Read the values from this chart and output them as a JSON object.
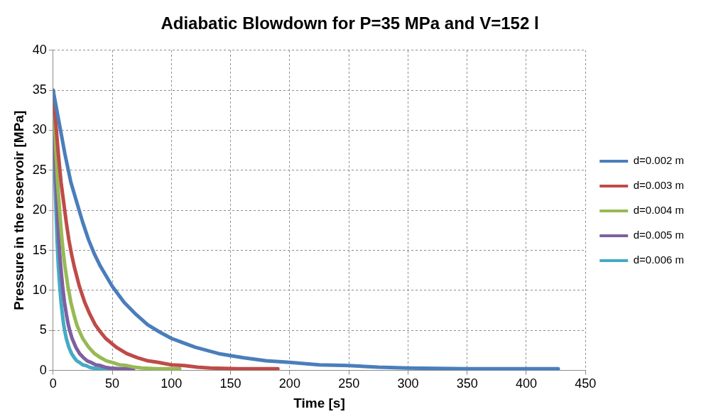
{
  "chart_data": {
    "type": "line",
    "title": "Adiabatic Blowdown for P=35 MPa and V=152 l",
    "xlabel": "Time [s]",
    "ylabel": "Pressure in the reservoir [MPa]",
    "xlim": [
      0,
      450
    ],
    "xticks": [
      0,
      50,
      100,
      150,
      200,
      250,
      300,
      350,
      400,
      450
    ],
    "ylim": [
      0,
      40
    ],
    "yticks": [
      0,
      5,
      10,
      15,
      20,
      25,
      30,
      35,
      40
    ],
    "grid": true,
    "legend": "right",
    "line_style": "solid",
    "series": [
      {
        "name": "d=0.002 m",
        "color": "#4a7ebb",
        "x": [
          0,
          5,
          10,
          15,
          20,
          25,
          30,
          35,
          40,
          50,
          60,
          70,
          80,
          90,
          100,
          120,
          140,
          160,
          180,
          200,
          225,
          250,
          275,
          300,
          350,
          400,
          427
        ],
        "values": [
          35,
          31,
          27,
          23.5,
          21,
          18.5,
          16.3,
          14.5,
          13,
          10.5,
          8.5,
          7,
          5.7,
          4.8,
          4,
          2.9,
          2.1,
          1.6,
          1.2,
          1,
          0.7,
          0.6,
          0.4,
          0.3,
          0.2,
          0.2,
          0.2
        ]
      },
      {
        "name": "d=0.003 m",
        "color": "#be4b48",
        "x": [
          0,
          2.2,
          4.4,
          6.7,
          8.9,
          11.1,
          13.3,
          15.6,
          17.8,
          22.2,
          26.7,
          31.1,
          35.6,
          40,
          44.4,
          53.3,
          62.2,
          71.1,
          80,
          88.9,
          100,
          111,
          122,
          133,
          156,
          178,
          190
        ],
        "values": [
          35,
          31,
          27,
          23.5,
          21,
          18.5,
          16.3,
          14.5,
          13,
          10.5,
          8.5,
          7,
          5.7,
          4.8,
          4,
          2.9,
          2.1,
          1.6,
          1.2,
          1,
          0.7,
          0.6,
          0.4,
          0.3,
          0.2,
          0.2,
          0.2
        ]
      },
      {
        "name": "d=0.004 m",
        "color": "#98b954",
        "x": [
          0,
          1.25,
          2.5,
          3.75,
          5,
          6.25,
          7.5,
          8.75,
          10,
          12.5,
          15,
          17.5,
          20,
          22.5,
          25,
          30,
          35,
          40,
          45,
          50,
          56,
          62.5,
          69,
          75,
          87.5,
          100,
          107
        ],
        "values": [
          35,
          31,
          27,
          23.5,
          21,
          18.5,
          16.3,
          14.5,
          13,
          10.5,
          8.5,
          7,
          5.7,
          4.8,
          4,
          2.9,
          2.1,
          1.6,
          1.2,
          1,
          0.7,
          0.6,
          0.4,
          0.3,
          0.2,
          0.2,
          0.2
        ]
      },
      {
        "name": "d=0.005 m",
        "color": "#7d60a0",
        "x": [
          0,
          0.8,
          1.6,
          2.4,
          3.2,
          4,
          4.8,
          5.6,
          6.4,
          8,
          9.6,
          11.2,
          12.8,
          14.4,
          16,
          19.2,
          22.4,
          25.6,
          28.8,
          32,
          36,
          40,
          44,
          48,
          56,
          64,
          68
        ],
        "values": [
          35,
          31,
          27,
          23.5,
          21,
          18.5,
          16.3,
          14.5,
          13,
          10.5,
          8.5,
          7,
          5.7,
          4.8,
          4,
          2.9,
          2.1,
          1.6,
          1.2,
          1,
          0.7,
          0.6,
          0.4,
          0.3,
          0.2,
          0.2,
          0.2
        ]
      },
      {
        "name": "d=0.006 m",
        "color": "#46aac5",
        "x": [
          0,
          0.56,
          1.1,
          1.7,
          2.2,
          2.8,
          3.3,
          3.9,
          4.4,
          5.6,
          6.7,
          7.8,
          8.9,
          10,
          11.1,
          13.3,
          15.6,
          17.8,
          20,
          22.2,
          25,
          27.8,
          30.6,
          33.3,
          38.9,
          44.4,
          47.4
        ],
        "values": [
          35,
          31,
          27,
          23.5,
          21,
          18.5,
          16.3,
          14.5,
          13,
          10.5,
          8.5,
          7,
          5.7,
          4.8,
          4,
          2.9,
          2.1,
          1.6,
          1.2,
          1,
          0.7,
          0.6,
          0.4,
          0.3,
          0.2,
          0.2,
          0.2
        ]
      }
    ]
  }
}
